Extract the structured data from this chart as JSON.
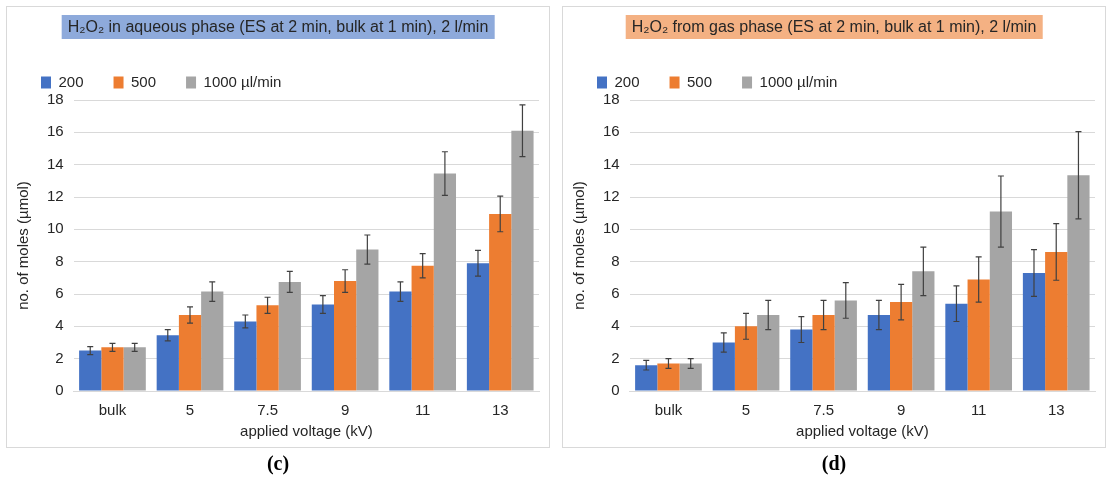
{
  "chart_data": [
    {
      "type": "bar",
      "title": "H₂O₂ in aqueous phase (ES at 2 min, bulk at 1 min), 2 l/min",
      "xlabel": "applied voltage (kV)",
      "ylabel": "no. of moles (µmol)",
      "categories": [
        "bulk",
        "5",
        "7.5",
        "9",
        "11",
        "13"
      ],
      "series": [
        {
          "name": "200",
          "color": "#4472c4",
          "values": [
            2.5,
            3.45,
            4.3,
            5.35,
            6.15,
            7.9
          ],
          "errors": [
            0.25,
            0.35,
            0.4,
            0.55,
            0.6,
            0.8
          ]
        },
        {
          "name": "500",
          "color": "#ed7d31",
          "values": [
            2.7,
            4.7,
            5.3,
            6.8,
            7.75,
            10.95
          ],
          "errors": [
            0.25,
            0.5,
            0.5,
            0.7,
            0.75,
            1.1
          ]
        },
        {
          "name": "1000 µl/min",
          "color": "#a5a5a5",
          "values": [
            2.7,
            6.15,
            6.75,
            8.75,
            13.45,
            16.1
          ],
          "errors": [
            0.25,
            0.6,
            0.65,
            0.9,
            1.35,
            1.6
          ]
        }
      ],
      "ylim": [
        0,
        18
      ],
      "yticks": [
        0,
        2,
        4,
        6,
        8,
        10,
        12,
        14,
        16,
        18
      ],
      "grid": "y",
      "legend": "top left",
      "annotations": [
        "(c)"
      ]
    },
    {
      "type": "bar",
      "title": "H₂O₂ from gas phase (ES at 2 min, bulk at 1 min), 2 l/min",
      "xlabel": "applied voltage (kV)",
      "ylabel": "no. of moles (µmol)",
      "categories": [
        "bulk",
        "5",
        "7.5",
        "9",
        "11",
        "13"
      ],
      "series": [
        {
          "name": "200",
          "color": "#4472c4",
          "values": [
            1.6,
            3.0,
            3.8,
            4.7,
            5.4,
            7.3
          ],
          "errors": [
            0.3,
            0.6,
            0.8,
            0.9,
            1.1,
            1.45
          ]
        },
        {
          "name": "500",
          "color": "#ed7d31",
          "values": [
            1.7,
            4.0,
            4.7,
            5.5,
            6.9,
            8.6
          ],
          "errors": [
            0.3,
            0.8,
            0.9,
            1.1,
            1.4,
            1.75
          ]
        },
        {
          "name": "1000 µl/min",
          "color": "#a5a5a5",
          "values": [
            1.7,
            4.7,
            5.6,
            7.4,
            11.1,
            13.35
          ],
          "errors": [
            0.3,
            0.9,
            1.1,
            1.5,
            2.2,
            2.7
          ]
        }
      ],
      "ylim": [
        0,
        18
      ],
      "yticks": [
        0,
        2,
        4,
        6,
        8,
        10,
        12,
        14,
        16,
        18
      ],
      "grid": "y",
      "legend": "top left",
      "annotations": [
        "(d)"
      ]
    }
  ]
}
